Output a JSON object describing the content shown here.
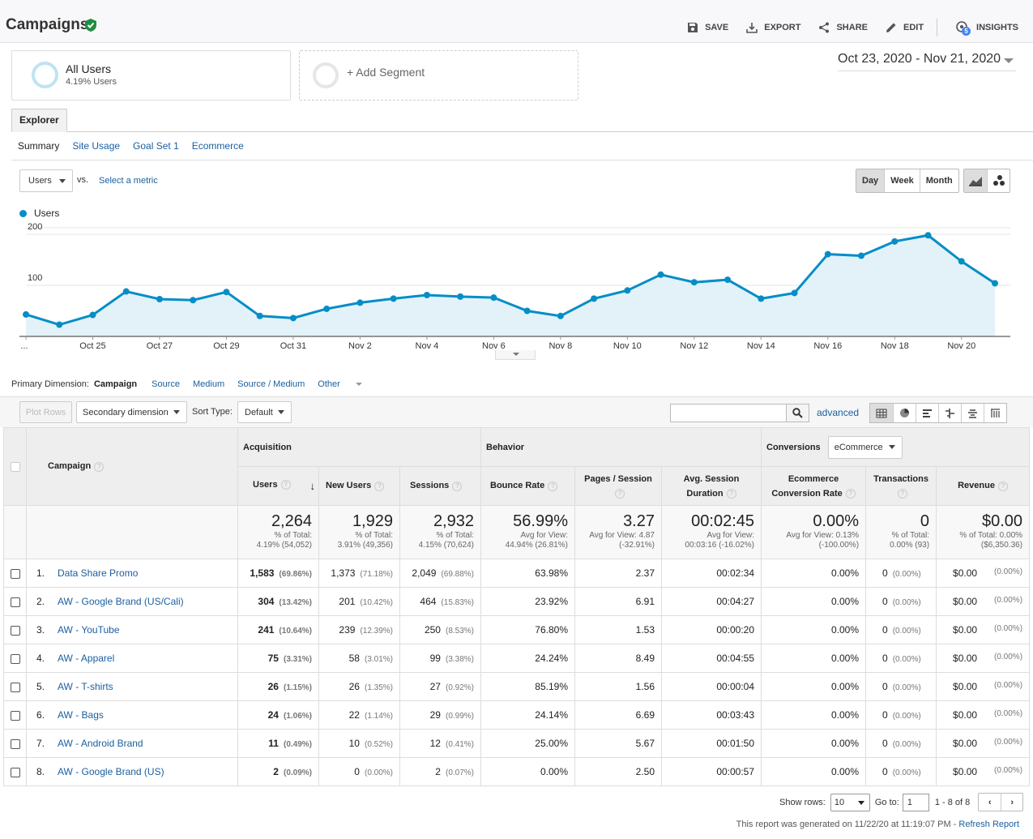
{
  "header": {
    "title": "Campaigns",
    "actions": {
      "save": "SAVE",
      "export": "EXPORT",
      "share": "SHARE",
      "edit": "EDIT",
      "insights": "INSIGHTS"
    },
    "insights_badge": "5"
  },
  "segments": {
    "all_users_title": "All Users",
    "all_users_sub": "4.19% Users",
    "add_segment": "+ Add Segment"
  },
  "date_range": "Oct 23, 2020 - Nov 21, 2020",
  "tabs": {
    "explorer": "Explorer"
  },
  "subtabs": [
    "Summary",
    "Site Usage",
    "Goal Set 1",
    "Ecommerce"
  ],
  "chart_controls": {
    "metric": "Users",
    "vs": "vs.",
    "select_metric": "Select a metric",
    "granularity": [
      "Day",
      "Week",
      "Month"
    ]
  },
  "chart_data": {
    "type": "area",
    "series": [
      {
        "name": "Users",
        "color": "#058dc7",
        "values": [
          43,
          23,
          42,
          88,
          73,
          71,
          87,
          40,
          36,
          54,
          66,
          74,
          81,
          78,
          76,
          50,
          40,
          74,
          90,
          121,
          106,
          111,
          74,
          85,
          161,
          158,
          186,
          198,
          147,
          104
        ]
      }
    ],
    "x_tick_labels": [
      "...",
      "Oct 25",
      "Oct 27",
      "Oct 29",
      "Oct 31",
      "Nov 2",
      "Nov 4",
      "Nov 6",
      "Nov 8",
      "Nov 10",
      "Nov 12",
      "Nov 14",
      "Nov 16",
      "Nov 18",
      "Nov 20"
    ],
    "y_ticks": [
      100,
      200
    ],
    "ylim": [
      0,
      200
    ],
    "grid": true,
    "legend": "top-left"
  },
  "dimensions": {
    "label": "Primary Dimension:",
    "current": "Campaign",
    "others": [
      "Source",
      "Medium",
      "Source / Medium",
      "Other"
    ]
  },
  "toolbar": {
    "plot_rows": "Plot Rows",
    "secondary_dimension": "Secondary dimension",
    "sort_type_label": "Sort Type:",
    "sort_type": "Default",
    "advanced": "advanced"
  },
  "table": {
    "groups": {
      "acquisition": "Acquisition",
      "behavior": "Behavior",
      "conversions": "Conversions",
      "conversions_select": "eCommerce"
    },
    "headers": {
      "campaign": "Campaign",
      "users": "Users",
      "new_users": "New Users",
      "sessions": "Sessions",
      "bounce_rate": "Bounce Rate",
      "pages_session": "Pages / Session",
      "avg_duration": "Avg. Session Duration",
      "ecom_rate": "Ecommerce Conversion Rate",
      "transactions": "Transactions",
      "revenue": "Revenue"
    },
    "totals": [
      {
        "big": "2,264",
        "l1": "% of Total:",
        "l2": "4.19% (54,052)"
      },
      {
        "big": "1,929",
        "l1": "% of Total:",
        "l2": "3.91% (49,356)"
      },
      {
        "big": "2,932",
        "l1": "% of Total:",
        "l2": "4.15% (70,624)"
      },
      {
        "big": "56.99%",
        "l1": "Avg for View:",
        "l2": "44.94% (26.81%)"
      },
      {
        "big": "3.27",
        "l1": "Avg for View: 4.87",
        "l2": "(-32.91%)"
      },
      {
        "big": "00:02:45",
        "l1": "Avg for View:",
        "l2": "00:03:16 (-16.02%)"
      },
      {
        "big": "0.00%",
        "l1": "Avg for View: 0.13%",
        "l2": "(-100.00%)"
      },
      {
        "big": "0",
        "l1": "% of Total:",
        "l2": "0.00% (93)"
      },
      {
        "big": "$0.00",
        "l1": "% of Total: 0.00%",
        "l2": "($6,350.36)"
      }
    ],
    "rows": [
      {
        "idx": "1.",
        "name": "Data Share Promo",
        "users": "1,583",
        "users_pct": "(69.86%)",
        "new": "1,373",
        "new_pct": "(71.18%)",
        "sess": "2,049",
        "sess_pct": "(69.88%)",
        "bounce": "63.98%",
        "pps": "2.37",
        "dur": "00:02:34",
        "rate": "0.00%",
        "tx": "0",
        "tx_pct": "(0.00%)",
        "rev": "$0.00",
        "rev_pct": "(0.00%)"
      },
      {
        "idx": "2.",
        "name": "AW - Google Brand (US/Cali)",
        "users": "304",
        "users_pct": "(13.42%)",
        "new": "201",
        "new_pct": "(10.42%)",
        "sess": "464",
        "sess_pct": "(15.83%)",
        "bounce": "23.92%",
        "pps": "6.91",
        "dur": "00:04:27",
        "rate": "0.00%",
        "tx": "0",
        "tx_pct": "(0.00%)",
        "rev": "$0.00",
        "rev_pct": "(0.00%)"
      },
      {
        "idx": "3.",
        "name": "AW - YouTube",
        "users": "241",
        "users_pct": "(10.64%)",
        "new": "239",
        "new_pct": "(12.39%)",
        "sess": "250",
        "sess_pct": "(8.53%)",
        "bounce": "76.80%",
        "pps": "1.53",
        "dur": "00:00:20",
        "rate": "0.00%",
        "tx": "0",
        "tx_pct": "(0.00%)",
        "rev": "$0.00",
        "rev_pct": "(0.00%)"
      },
      {
        "idx": "4.",
        "name": "AW - Apparel",
        "users": "75",
        "users_pct": "(3.31%)",
        "new": "58",
        "new_pct": "(3.01%)",
        "sess": "99",
        "sess_pct": "(3.38%)",
        "bounce": "24.24%",
        "pps": "8.49",
        "dur": "00:04:55",
        "rate": "0.00%",
        "tx": "0",
        "tx_pct": "(0.00%)",
        "rev": "$0.00",
        "rev_pct": "(0.00%)"
      },
      {
        "idx": "5.",
        "name": "AW - T-shirts",
        "users": "26",
        "users_pct": "(1.15%)",
        "new": "26",
        "new_pct": "(1.35%)",
        "sess": "27",
        "sess_pct": "(0.92%)",
        "bounce": "85.19%",
        "pps": "1.56",
        "dur": "00:00:04",
        "rate": "0.00%",
        "tx": "0",
        "tx_pct": "(0.00%)",
        "rev": "$0.00",
        "rev_pct": "(0.00%)"
      },
      {
        "idx": "6.",
        "name": "AW - Bags",
        "users": "24",
        "users_pct": "(1.06%)",
        "new": "22",
        "new_pct": "(1.14%)",
        "sess": "29",
        "sess_pct": "(0.99%)",
        "bounce": "24.14%",
        "pps": "6.69",
        "dur": "00:03:43",
        "rate": "0.00%",
        "tx": "0",
        "tx_pct": "(0.00%)",
        "rev": "$0.00",
        "rev_pct": "(0.00%)"
      },
      {
        "idx": "7.",
        "name": "AW - Android Brand",
        "users": "11",
        "users_pct": "(0.49%)",
        "new": "10",
        "new_pct": "(0.52%)",
        "sess": "12",
        "sess_pct": "(0.41%)",
        "bounce": "25.00%",
        "pps": "5.67",
        "dur": "00:01:50",
        "rate": "0.00%",
        "tx": "0",
        "tx_pct": "(0.00%)",
        "rev": "$0.00",
        "rev_pct": "(0.00%)"
      },
      {
        "idx": "8.",
        "name": "AW - Google Brand (US)",
        "users": "2",
        "users_pct": "(0.09%)",
        "new": "0",
        "new_pct": "(0.00%)",
        "sess": "2",
        "sess_pct": "(0.07%)",
        "bounce": "0.00%",
        "pps": "2.50",
        "dur": "00:00:57",
        "rate": "0.00%",
        "tx": "0",
        "tx_pct": "(0.00%)",
        "rev": "$0.00",
        "rev_pct": "(0.00%)"
      }
    ]
  },
  "pagination": {
    "show_rows_label": "Show rows:",
    "show_rows": "10",
    "goto_label": "Go to:",
    "goto": "1",
    "range": "1 - 8 of 8"
  },
  "footer": {
    "text": "This report was generated on 11/22/20 at 11:19:07 PM - ",
    "refresh": "Refresh Report"
  }
}
